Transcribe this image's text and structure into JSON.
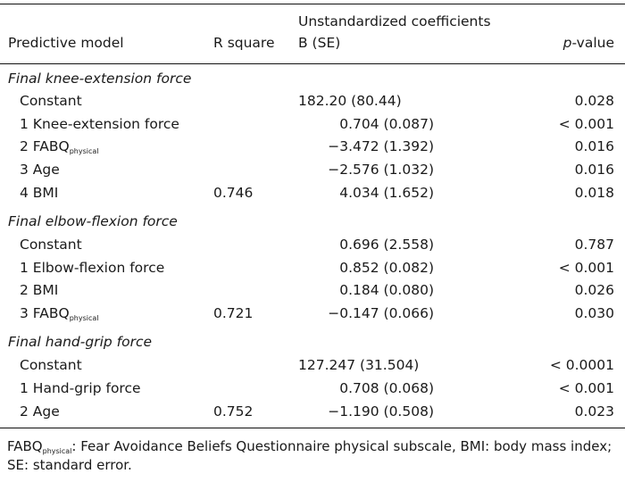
{
  "header": {
    "col_model": "Predictive model",
    "col_r": "R square",
    "col_b_group": "Unstandardized coefficients",
    "col_b": "B (SE)",
    "col_p_italic": "p",
    "col_p_rest": "-value"
  },
  "sections": [
    {
      "title": "Final knee-extension force",
      "rows": [
        {
          "label": "Constant",
          "r": "",
          "b": "182.20 (80.44)",
          "p": "0.028"
        },
        {
          "label": "1 Knee-extension force",
          "r": "",
          "b": "0.704 (0.087)",
          "p": "< 0.001"
        },
        {
          "label": "2 FABQ",
          "label_sub": "physical",
          "r": "",
          "b": "−3.472 (1.392)",
          "p": "0.016"
        },
        {
          "label": "3 Age",
          "r": "",
          "b": "−2.576 (1.032)",
          "p": "0.016"
        },
        {
          "label": "4 BMI",
          "r": "0.746",
          "b": "4.034 (1.652)",
          "p": "0.018"
        }
      ]
    },
    {
      "title": "Final elbow-flexion force",
      "rows": [
        {
          "label": "Constant",
          "r": "",
          "b": "0.696 (2.558)",
          "p": "0.787"
        },
        {
          "label": "1 Elbow-flexion force",
          "r": "",
          "b": "0.852 (0.082)",
          "p": "< 0.001"
        },
        {
          "label": "2 BMI",
          "r": "",
          "b": "0.184 (0.080)",
          "p": "0.026"
        },
        {
          "label": "3 FABQ",
          "label_sub": "physical",
          "r": "0.721",
          "b": "−0.147 (0.066)",
          "p": "0.030"
        }
      ]
    },
    {
      "title": "Final hand-grip force",
      "rows": [
        {
          "label": "Constant",
          "r": "",
          "b": "127.247 (31.504)",
          "p": "< 0.0001"
        },
        {
          "label": "1 Hand-grip force",
          "r": "",
          "b": "0.708 (0.068)",
          "p": "< 0.001"
        },
        {
          "label": "2 Age",
          "r": "0.752",
          "b": "−1.190 (0.508)",
          "p": "0.023"
        }
      ]
    }
  ],
  "footnote": {
    "abbr": "FABQ",
    "abbr_sub": "physical",
    "text": ": Fear Avoidance Beliefs Questionnaire physical subscale, BMI: body mass index; SE: standard error."
  }
}
